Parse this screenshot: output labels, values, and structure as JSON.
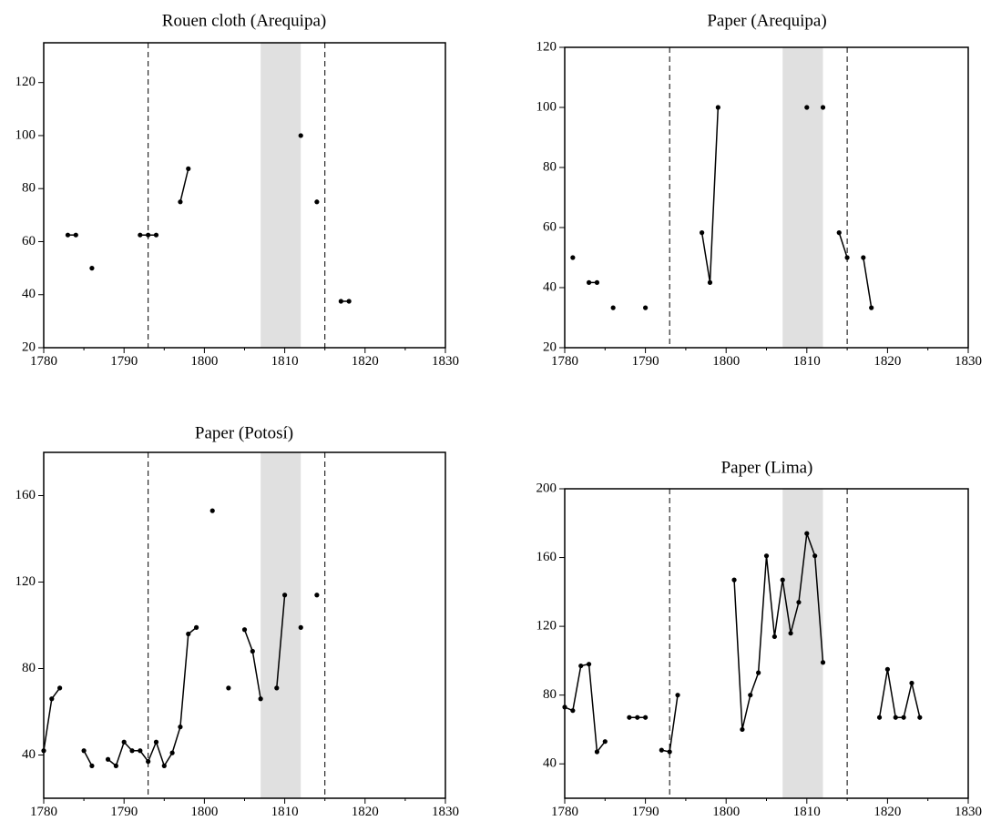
{
  "colors": {
    "shade": "#e0e0e0",
    "line": "#000000",
    "background": "#ffffff"
  },
  "chart_data": [
    {
      "type": "line",
      "title": "Rouen cloth (Arequipa)",
      "xlim": [
        1780,
        1830
      ],
      "ylim": [
        20,
        135
      ],
      "xticks": [
        "1780",
        "1790",
        "1800",
        "1810",
        "1820",
        "1830"
      ],
      "yticks": [
        "20",
        "40",
        "60",
        "80",
        "100",
        "120"
      ],
      "vlines_dashed": [
        1793,
        1815
      ],
      "shaded_span": [
        1807,
        1812
      ],
      "grid": false,
      "legend": "none",
      "segments": [
        [
          [
            1783,
            62.5
          ],
          [
            1784,
            62.5
          ]
        ],
        [
          [
            1786,
            50
          ]
        ],
        [
          [
            1792,
            62.5
          ],
          [
            1793,
            62.5
          ],
          [
            1794,
            62.5
          ]
        ],
        [
          [
            1797,
            75
          ],
          [
            1798,
            87.5
          ]
        ],
        [
          [
            1812,
            100
          ]
        ],
        [
          [
            1814,
            75
          ]
        ],
        [
          [
            1817,
            37.5
          ],
          [
            1818,
            37.5
          ]
        ]
      ]
    },
    {
      "type": "line",
      "title": "Paper (Arequipa)",
      "xlim": [
        1780,
        1830
      ],
      "ylim": [
        20,
        120
      ],
      "xticks": [
        "1780",
        "1790",
        "1800",
        "1810",
        "1820",
        "1830"
      ],
      "yticks": [
        "20",
        "40",
        "60",
        "80",
        "100",
        "120"
      ],
      "vlines_dashed": [
        1793,
        1815
      ],
      "shaded_span": [
        1807,
        1812
      ],
      "grid": false,
      "legend": "none",
      "segments": [
        [
          [
            1781,
            50
          ]
        ],
        [
          [
            1783,
            41.7
          ],
          [
            1784,
            41.7
          ]
        ],
        [
          [
            1786,
            33.3
          ]
        ],
        [
          [
            1790,
            33.3
          ]
        ],
        [
          [
            1797,
            58.3
          ],
          [
            1798,
            41.7
          ],
          [
            1799,
            100
          ]
        ],
        [
          [
            1810,
            100
          ]
        ],
        [
          [
            1812,
            100
          ]
        ],
        [
          [
            1814,
            58.3
          ],
          [
            1815,
            50
          ]
        ],
        [
          [
            1817,
            50
          ],
          [
            1818,
            33.3
          ]
        ]
      ]
    },
    {
      "type": "line",
      "title": "Paper (Potosí)",
      "xlim": [
        1780,
        1830
      ],
      "ylim": [
        20,
        180
      ],
      "xticks": [
        "1780",
        "1790",
        "1800",
        "1810",
        "1820",
        "1830"
      ],
      "yticks": [
        "40",
        "80",
        "120",
        "160"
      ],
      "vlines_dashed": [
        1793,
        1815
      ],
      "shaded_span": [
        1807,
        1812
      ],
      "grid": false,
      "legend": "none",
      "segments": [
        [
          [
            1780,
            42
          ],
          [
            1781,
            66
          ],
          [
            1782,
            71
          ]
        ],
        [
          [
            1785,
            42
          ],
          [
            1786,
            35
          ]
        ],
        [
          [
            1788,
            38
          ],
          [
            1789,
            35
          ],
          [
            1790,
            46
          ],
          [
            1791,
            42
          ],
          [
            1792,
            42
          ],
          [
            1793,
            37
          ],
          [
            1794,
            46
          ],
          [
            1795,
            35
          ],
          [
            1796,
            41
          ],
          [
            1797,
            53
          ],
          [
            1798,
            96
          ],
          [
            1799,
            99
          ]
        ],
        [
          [
            1801,
            153
          ]
        ],
        [
          [
            1803,
            71
          ]
        ],
        [
          [
            1805,
            98
          ],
          [
            1806,
            88
          ],
          [
            1807,
            66
          ]
        ],
        [
          [
            1809,
            71
          ],
          [
            1810,
            114
          ]
        ],
        [
          [
            1812,
            99
          ]
        ],
        [
          [
            1814,
            114
          ]
        ]
      ]
    },
    {
      "type": "line",
      "title": "Paper (Lima)",
      "xlim": [
        1780,
        1830
      ],
      "ylim": [
        20,
        200
      ],
      "xticks": [
        "1780",
        "1790",
        "1800",
        "1810",
        "1820",
        "1830"
      ],
      "yticks": [
        "40",
        "80",
        "120",
        "160",
        "200"
      ],
      "vlines_dashed": [
        1793,
        1815
      ],
      "shaded_span": [
        1807,
        1812
      ],
      "grid": false,
      "legend": "none",
      "segments": [
        [
          [
            1780,
            73
          ],
          [
            1781,
            71
          ],
          [
            1782,
            97
          ],
          [
            1783,
            98
          ],
          [
            1784,
            47
          ],
          [
            1785,
            53
          ]
        ],
        [
          [
            1788,
            67
          ],
          [
            1789,
            67
          ],
          [
            1790,
            67
          ]
        ],
        [
          [
            1792,
            48
          ],
          [
            1793,
            47
          ],
          [
            1794,
            80
          ]
        ],
        [
          [
            1801,
            147
          ],
          [
            1802,
            60
          ],
          [
            1803,
            80
          ],
          [
            1804,
            93
          ],
          [
            1805,
            161
          ],
          [
            1806,
            114
          ],
          [
            1807,
            147
          ],
          [
            1808,
            116
          ],
          [
            1809,
            134
          ],
          [
            1810,
            174
          ],
          [
            1811,
            161
          ],
          [
            1812,
            99
          ]
        ],
        [
          [
            1819,
            67
          ],
          [
            1820,
            95
          ],
          [
            1821,
            67
          ],
          [
            1822,
            67
          ],
          [
            1823,
            87
          ],
          [
            1824,
            67
          ]
        ]
      ]
    }
  ]
}
